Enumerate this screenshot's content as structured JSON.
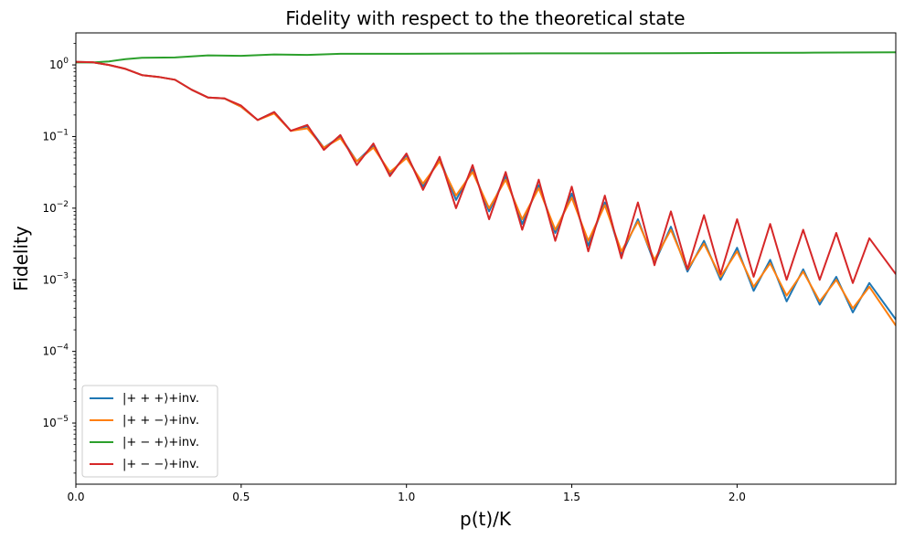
{
  "chart_data": {
    "type": "line",
    "title": "Fidelity with respect to the theoretical state",
    "xlabel": "p(t)/K",
    "ylabel": "Fidelity",
    "xlim": [
      0,
      2.48
    ],
    "ylim": [
      1.4e-06,
      2.8
    ],
    "yscale": "log",
    "grid": false,
    "legend_position": "lower-left",
    "x_ticks": [
      {
        "value": 0.0,
        "label": "0.0"
      },
      {
        "value": 0.5,
        "label": "0.5"
      },
      {
        "value": 1.0,
        "label": "1.0"
      },
      {
        "value": 1.5,
        "label": "1.5"
      },
      {
        "value": 2.0,
        "label": "2.0"
      }
    ],
    "y_ticks": [
      {
        "value": 1,
        "base": "10",
        "exp": "0"
      },
      {
        "value": 0.1,
        "base": "10",
        "exp": "−1"
      },
      {
        "value": 0.01,
        "base": "10",
        "exp": "−2"
      },
      {
        "value": 0.001,
        "base": "10",
        "exp": "−3"
      },
      {
        "value": 0.0001,
        "base": "10",
        "exp": "−4"
      },
      {
        "value": 1e-05,
        "base": "10",
        "exp": "−5"
      }
    ],
    "series": [
      {
        "name": "|+ + +⟩+inv.",
        "color": "#1f77b4",
        "x": [
          0,
          0.05,
          0.1,
          0.15,
          0.2,
          0.25,
          0.3,
          0.35,
          0.4,
          0.45,
          0.5,
          0.55,
          0.6,
          0.65,
          0.7,
          0.75,
          0.8,
          0.85,
          0.9,
          0.95,
          1.0,
          1.05,
          1.1,
          1.15,
          1.2,
          1.25,
          1.3,
          1.35,
          1.4,
          1.45,
          1.5,
          1.55,
          1.6,
          1.65,
          1.7,
          1.75,
          1.8,
          1.85,
          1.9,
          1.95,
          2.0,
          2.05,
          2.1,
          2.15,
          2.2,
          2.25,
          2.3,
          2.35,
          2.4,
          2.48
        ],
        "y": [
          1.1,
          1.09,
          1.0,
          0.88,
          0.72,
          0.68,
          0.62,
          0.45,
          0.35,
          0.34,
          0.26,
          0.17,
          0.22,
          0.12,
          0.14,
          0.07,
          0.1,
          0.045,
          0.075,
          0.03,
          0.055,
          0.02,
          0.05,
          0.013,
          0.035,
          0.009,
          0.028,
          0.006,
          0.021,
          0.0045,
          0.016,
          0.003,
          0.012,
          0.0022,
          0.007,
          0.0017,
          0.0055,
          0.0013,
          0.0035,
          0.001,
          0.0028,
          0.0007,
          0.0019,
          0.0005,
          0.0014,
          0.00045,
          0.0011,
          0.00035,
          0.0009,
          0.00028
        ]
      },
      {
        "name": "|+ + −⟩+inv.",
        "color": "#ff7f0e",
        "x": [
          0,
          0.05,
          0.1,
          0.15,
          0.2,
          0.25,
          0.3,
          0.35,
          0.4,
          0.45,
          0.5,
          0.55,
          0.6,
          0.65,
          0.7,
          0.75,
          0.8,
          0.85,
          0.9,
          0.95,
          1.0,
          1.05,
          1.1,
          1.15,
          1.2,
          1.25,
          1.3,
          1.35,
          1.4,
          1.45,
          1.5,
          1.55,
          1.6,
          1.65,
          1.7,
          1.75,
          1.8,
          1.85,
          1.9,
          1.95,
          2.0,
          2.05,
          2.1,
          2.15,
          2.2,
          2.25,
          2.3,
          2.35,
          2.4,
          2.48
        ],
        "y": [
          1.1,
          1.09,
          1.0,
          0.88,
          0.72,
          0.68,
          0.62,
          0.45,
          0.35,
          0.34,
          0.26,
          0.17,
          0.21,
          0.12,
          0.13,
          0.07,
          0.095,
          0.045,
          0.07,
          0.032,
          0.05,
          0.022,
          0.045,
          0.015,
          0.032,
          0.01,
          0.025,
          0.007,
          0.019,
          0.005,
          0.014,
          0.0035,
          0.011,
          0.0025,
          0.0065,
          0.0019,
          0.005,
          0.0014,
          0.0032,
          0.0011,
          0.0025,
          0.0008,
          0.0017,
          0.0006,
          0.0013,
          0.0005,
          0.001,
          0.0004,
          0.0008,
          0.00023
        ]
      },
      {
        "name": "|+ − +⟩+inv.",
        "color": "#2ca02c",
        "x": [
          0,
          0.05,
          0.1,
          0.15,
          0.2,
          0.3,
          0.4,
          0.5,
          0.6,
          0.7,
          0.8,
          1.0,
          1.2,
          1.4,
          1.6,
          1.8,
          2.0,
          2.2,
          2.48
        ],
        "y": [
          1.08,
          1.08,
          1.12,
          1.2,
          1.26,
          1.27,
          1.36,
          1.34,
          1.4,
          1.38,
          1.43,
          1.43,
          1.44,
          1.45,
          1.45,
          1.46,
          1.47,
          1.48,
          1.5
        ]
      },
      {
        "name": "|+ − −⟩+inv.",
        "color": "#d62728",
        "x": [
          0,
          0.05,
          0.1,
          0.15,
          0.2,
          0.25,
          0.3,
          0.35,
          0.4,
          0.45,
          0.5,
          0.55,
          0.6,
          0.65,
          0.7,
          0.75,
          0.8,
          0.85,
          0.9,
          0.95,
          1.0,
          1.05,
          1.1,
          1.15,
          1.2,
          1.25,
          1.3,
          1.35,
          1.4,
          1.45,
          1.5,
          1.55,
          1.6,
          1.65,
          1.7,
          1.75,
          1.8,
          1.85,
          1.9,
          1.95,
          2.0,
          2.05,
          2.1,
          2.15,
          2.2,
          2.25,
          2.3,
          2.35,
          2.4,
          2.48
        ],
        "y": [
          1.1,
          1.09,
          1.0,
          0.88,
          0.72,
          0.68,
          0.62,
          0.45,
          0.35,
          0.34,
          0.27,
          0.17,
          0.22,
          0.12,
          0.145,
          0.065,
          0.105,
          0.04,
          0.08,
          0.028,
          0.058,
          0.018,
          0.052,
          0.01,
          0.04,
          0.007,
          0.032,
          0.005,
          0.025,
          0.0035,
          0.02,
          0.0025,
          0.015,
          0.002,
          0.012,
          0.0016,
          0.009,
          0.0014,
          0.008,
          0.0012,
          0.007,
          0.0011,
          0.006,
          0.001,
          0.005,
          0.001,
          0.0045,
          0.0009,
          0.0038,
          0.0012
        ]
      }
    ]
  }
}
